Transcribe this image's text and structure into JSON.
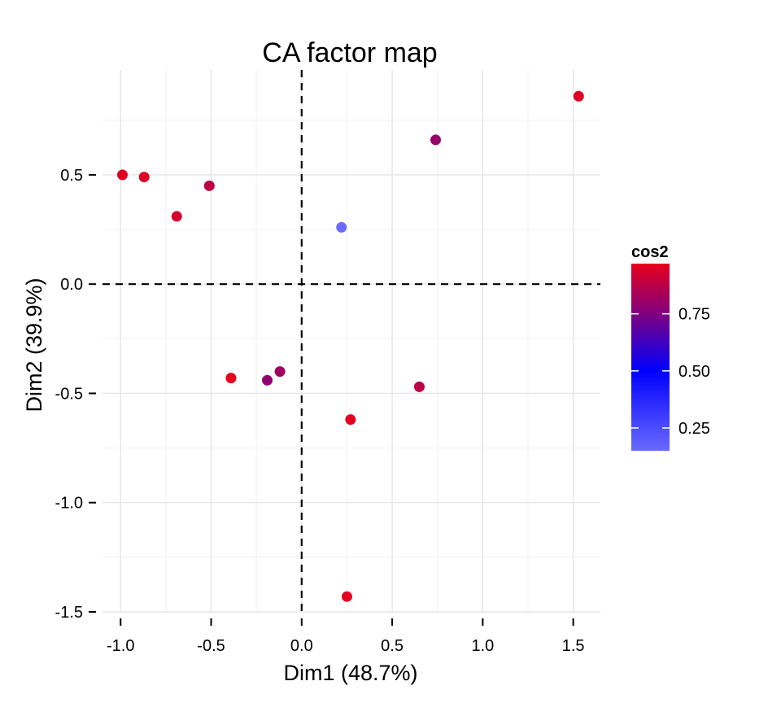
{
  "chart_data": {
    "type": "scatter",
    "title": "CA factor map",
    "xlabel": "Dim1 (48.7%)",
    "ylabel": "Dim2 (39.9%)",
    "xlim": [
      -1.1,
      1.65
    ],
    "ylim": [
      -1.5,
      0.98
    ],
    "x_ticks": [
      -1.0,
      -0.5,
      0.0,
      0.5,
      1.0,
      1.5
    ],
    "x_tick_labels": [
      "-1.0",
      "-0.5",
      "0.0",
      "0.5",
      "1.0",
      "1.5"
    ],
    "y_ticks": [
      0.5,
      0.0,
      -0.5,
      -1.0,
      -1.5
    ],
    "y_tick_labels": [
      "0.5",
      "0.0",
      "-0.5",
      "-1.0",
      "-1.5"
    ],
    "grid": true,
    "reference_lines": {
      "x": 0,
      "y": 0,
      "style": "dashed"
    },
    "color_scale": {
      "name": "cos2",
      "min": 0.15,
      "max": 0.97,
      "stops": [
        {
          "value": 0.15,
          "color": "#6a6aff"
        },
        {
          "value": 0.5,
          "color": "#0000ff"
        },
        {
          "value": 0.75,
          "color": "#800080"
        },
        {
          "value": 0.97,
          "color": "#e8001c"
        }
      ],
      "ticks": [
        0.75,
        0.5,
        0.25
      ],
      "tick_labels": [
        "0.75",
        "0.50",
        "0.25"
      ],
      "legend_position": "right"
    },
    "points": [
      {
        "x": -0.99,
        "y": 0.5,
        "cos2": 0.95
      },
      {
        "x": -0.87,
        "y": 0.49,
        "cos2": 0.95
      },
      {
        "x": -0.69,
        "y": 0.31,
        "cos2": 0.93
      },
      {
        "x": -0.51,
        "y": 0.45,
        "cos2": 0.88
      },
      {
        "x": 0.22,
        "y": 0.26,
        "cos2": 0.15
      },
      {
        "x": 0.74,
        "y": 0.66,
        "cos2": 0.8
      },
      {
        "x": 1.53,
        "y": 0.86,
        "cos2": 0.95
      },
      {
        "x": -0.39,
        "y": -0.43,
        "cos2": 0.97
      },
      {
        "x": -0.19,
        "y": -0.44,
        "cos2": 0.78
      },
      {
        "x": -0.12,
        "y": -0.4,
        "cos2": 0.82
      },
      {
        "x": 0.65,
        "y": -0.47,
        "cos2": 0.87
      },
      {
        "x": 0.27,
        "y": -0.62,
        "cos2": 0.96
      },
      {
        "x": 0.25,
        "y": -1.43,
        "cos2": 0.96
      }
    ]
  }
}
